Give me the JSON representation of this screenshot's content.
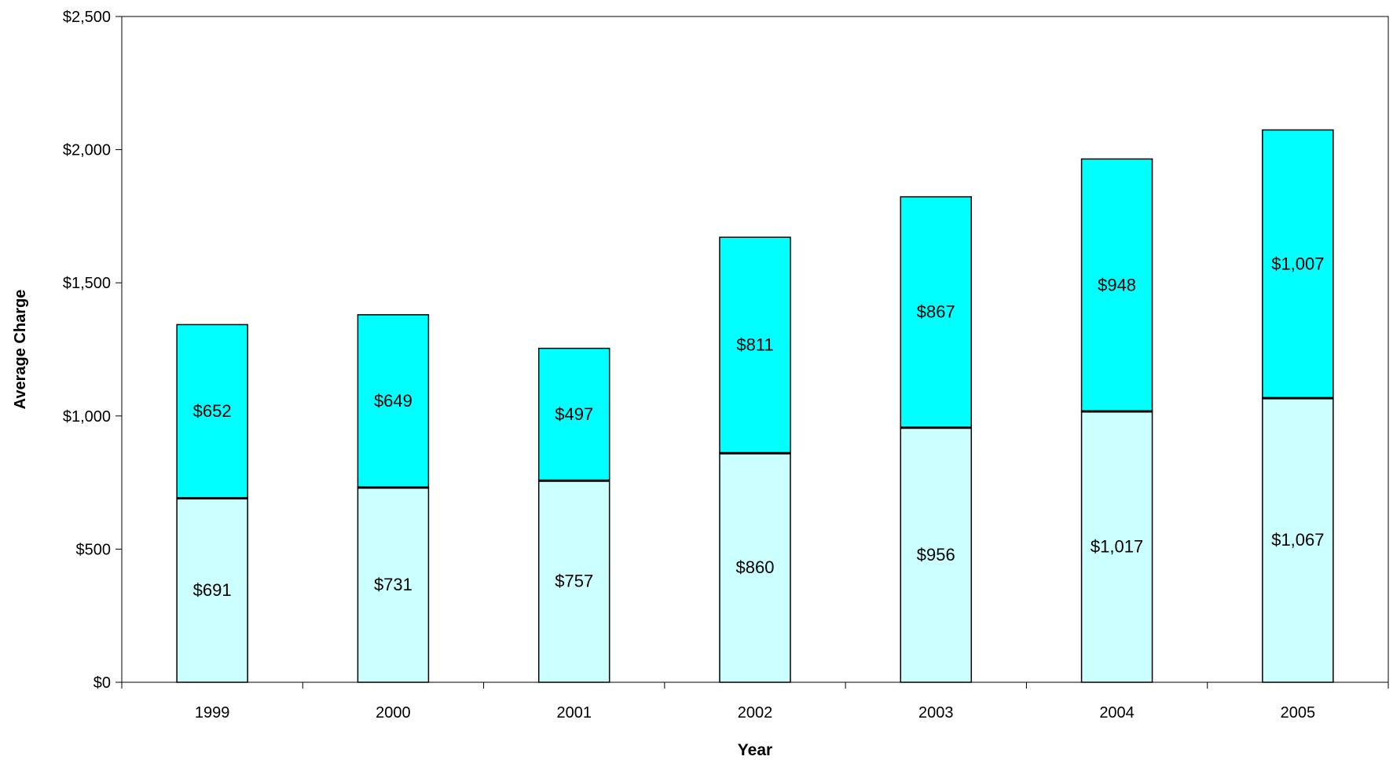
{
  "chart_data": {
    "type": "bar",
    "stacked": true,
    "categories": [
      "1999",
      "2000",
      "2001",
      "2002",
      "2003",
      "2004",
      "2005"
    ],
    "series": [
      {
        "values": [
          691,
          731,
          757,
          860,
          956,
          1017,
          1067
        ],
        "labels": [
          "$691",
          "$731",
          "$757",
          "$860",
          "$956",
          "$1,017",
          "$1,067"
        ],
        "color": "#ccffff"
      },
      {
        "values": [
          652,
          649,
          497,
          811,
          867,
          948,
          1007
        ],
        "labels": [
          "$652",
          "$649",
          "$497",
          "$811",
          "$867",
          "$948",
          "$1,007"
        ],
        "color": "#00ffff"
      }
    ],
    "xlabel": "Year",
    "ylabel": "Average Charge",
    "ylim": [
      0,
      2500
    ],
    "yticks": [
      0,
      500,
      1000,
      1500,
      2000,
      2500
    ],
    "ytick_labels": [
      "$0",
      "$500",
      "$1,000",
      "$1,500",
      "$2,000",
      "$2,500"
    ],
    "grid": false,
    "legend": "none"
  }
}
